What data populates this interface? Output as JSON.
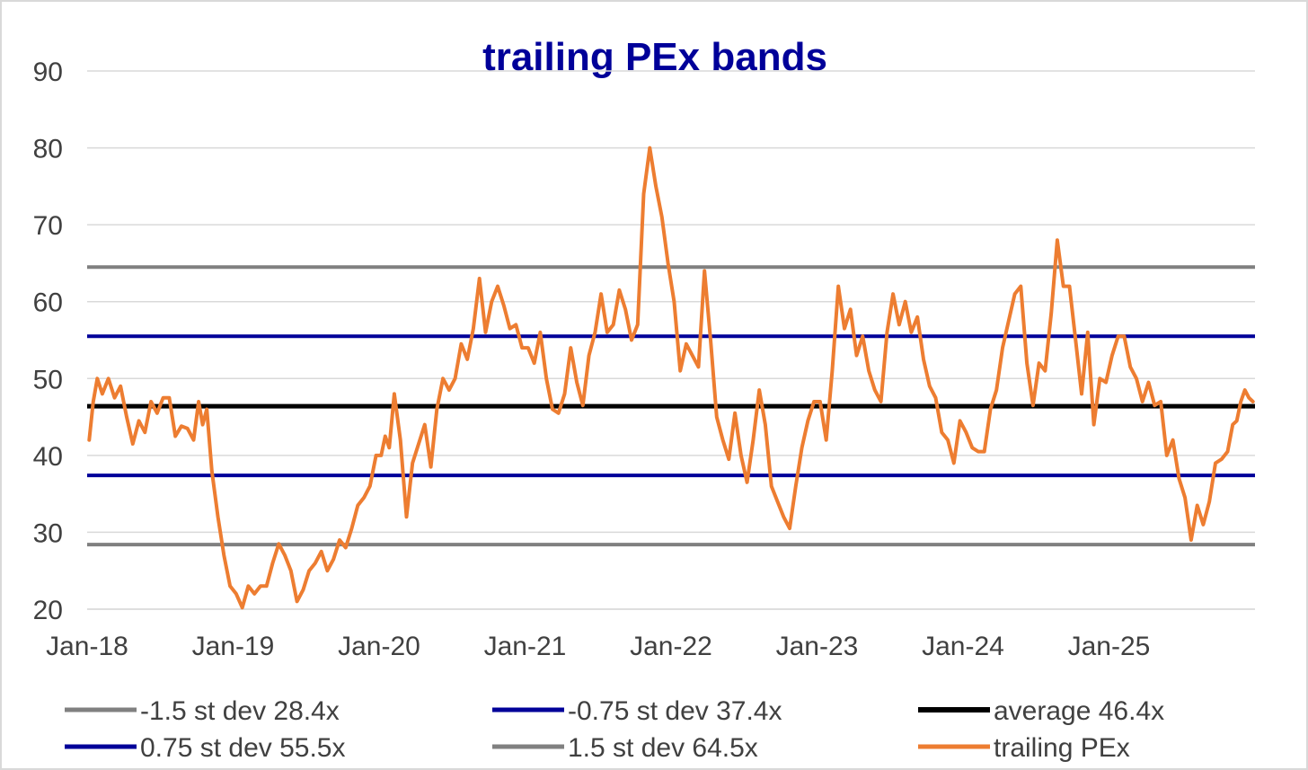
{
  "chart_data": {
    "type": "line",
    "title": "trailing PEx bands",
    "xlabel": "",
    "ylabel": "",
    "ylim": [
      20,
      90
    ],
    "yticks": [
      "20",
      "30",
      "40",
      "50",
      "60",
      "70",
      "80",
      "90"
    ],
    "xticks": [
      "Jan-18",
      "Jan-19",
      "Jan-20",
      "Jan-21",
      "Jan-22",
      "Jan-23",
      "Jan-24",
      "Jan-25"
    ],
    "x_start": "Jan-18",
    "x_end": "Dec-25",
    "grid": true,
    "legend_position": "bottom",
    "bands": [
      {
        "name": "-1.5 st dev 28.4x",
        "value": 28.4,
        "color": "#808080"
      },
      {
        "name": "-0.75 st dev 37.4x",
        "value": 37.4,
        "color": "#000099"
      },
      {
        "name": "average 46.4x",
        "value": 46.4,
        "color": "#000000"
      },
      {
        "name": "0.75 st dev 55.5x",
        "value": 55.5,
        "color": "#000099"
      },
      {
        "name": "1.5 st dev 64.5x",
        "value": 64.5,
        "color": "#808080"
      }
    ],
    "series": [
      {
        "name": "trailing PEx",
        "color": "#ED7D31",
        "points": [
          [
            "Jan-18",
            42
          ],
          [
            "Jan-18",
            47
          ],
          [
            "Jan-18",
            50
          ],
          [
            "Feb-18",
            48
          ],
          [
            "Feb-18",
            50
          ],
          [
            "Mar-18",
            47.5
          ],
          [
            "Mar-18",
            49
          ],
          [
            "Apr-18",
            45
          ],
          [
            "Apr-18",
            41.5
          ],
          [
            "May-18",
            44.5
          ],
          [
            "May-18",
            43
          ],
          [
            "Jun-18",
            47
          ],
          [
            "Jun-18",
            45.5
          ],
          [
            "Jul-18",
            47.5
          ],
          [
            "Jul-18",
            47.5
          ],
          [
            "Aug-18",
            42.5
          ],
          [
            "Aug-18",
            43.8
          ],
          [
            "Sep-18",
            43.5
          ],
          [
            "Sep-18",
            42
          ],
          [
            "Oct-18",
            47
          ],
          [
            "Oct-18",
            44
          ],
          [
            "Oct-18",
            46
          ],
          [
            "Nov-18",
            38
          ],
          [
            "Nov-18",
            32
          ],
          [
            "Dec-18",
            27
          ],
          [
            "Dec-18",
            23
          ],
          [
            "Jan-19",
            22
          ],
          [
            "Jan-19",
            20.2
          ],
          [
            "Feb-19",
            23
          ],
          [
            "Feb-19",
            22
          ],
          [
            "Mar-19",
            23
          ],
          [
            "Mar-19",
            23
          ],
          [
            "Apr-19",
            26
          ],
          [
            "Apr-19",
            28.5
          ],
          [
            "May-19",
            27
          ],
          [
            "May-19",
            25
          ],
          [
            "Jun-19",
            21
          ],
          [
            "Jun-19",
            22.5
          ],
          [
            "Jul-19",
            25
          ],
          [
            "Jul-19",
            26
          ],
          [
            "Aug-19",
            27.5
          ],
          [
            "Aug-19",
            25
          ],
          [
            "Sep-19",
            26.5
          ],
          [
            "Sep-19",
            29
          ],
          [
            "Oct-19",
            28
          ],
          [
            "Oct-19",
            30.5
          ],
          [
            "Nov-19",
            33.5
          ],
          [
            "Nov-19",
            34.5
          ],
          [
            "Dec-19",
            36
          ],
          [
            "Dec-19",
            40
          ],
          [
            "Jan-20",
            40
          ],
          [
            "Jan-20",
            42.5
          ],
          [
            "Jan-20",
            41
          ],
          [
            "Feb-20",
            48
          ],
          [
            "Feb-20",
            42
          ],
          [
            "Mar-20",
            32
          ],
          [
            "Mar-20",
            39
          ],
          [
            "Apr-20",
            41.5
          ],
          [
            "Apr-20",
            44
          ],
          [
            "May-20",
            38.5
          ],
          [
            "May-20",
            46
          ],
          [
            "Jun-20",
            50
          ],
          [
            "Jun-20",
            48.5
          ],
          [
            "Jul-20",
            50
          ],
          [
            "Jul-20",
            54.5
          ],
          [
            "Aug-20",
            52.5
          ],
          [
            "Aug-20",
            56.5
          ],
          [
            "Sep-20",
            63
          ],
          [
            "Sep-20",
            56
          ],
          [
            "Oct-20",
            60
          ],
          [
            "Oct-20",
            62
          ],
          [
            "Nov-20",
            59.5
          ],
          [
            "Nov-20",
            56.5
          ],
          [
            "Dec-20",
            57
          ],
          [
            "Dec-20",
            54
          ],
          [
            "Jan-21",
            54
          ],
          [
            "Jan-21",
            52
          ],
          [
            "Feb-21",
            56
          ],
          [
            "Feb-21",
            50
          ],
          [
            "Mar-21",
            46
          ],
          [
            "Mar-21",
            45.5
          ],
          [
            "Apr-21",
            48
          ],
          [
            "Apr-21",
            54
          ],
          [
            "May-21",
            49.5
          ],
          [
            "May-21",
            46.5
          ],
          [
            "Jun-21",
            53
          ],
          [
            "Jun-21",
            56
          ],
          [
            "Jul-21",
            61
          ],
          [
            "Jul-21",
            56
          ],
          [
            "Aug-21",
            57
          ],
          [
            "Aug-21",
            61.5
          ],
          [
            "Sep-21",
            59
          ],
          [
            "Sep-21",
            55
          ],
          [
            "Oct-21",
            57
          ],
          [
            "Oct-21",
            74
          ],
          [
            "Nov-21",
            80
          ],
          [
            "Nov-21",
            75
          ],
          [
            "Dec-21",
            71
          ],
          [
            "Dec-21",
            65
          ],
          [
            "Jan-22",
            60
          ],
          [
            "Jan-22",
            51
          ],
          [
            "Feb-22",
            54.5
          ],
          [
            "Feb-22",
            53
          ],
          [
            "Mar-22",
            51.5
          ],
          [
            "Mar-22",
            64
          ],
          [
            "Apr-22",
            55
          ],
          [
            "Apr-22",
            45
          ],
          [
            "May-22",
            42
          ],
          [
            "May-22",
            39.5
          ],
          [
            "Jun-22",
            45.5
          ],
          [
            "Jun-22",
            40
          ],
          [
            "Jul-22",
            36.5
          ],
          [
            "Jul-22",
            42
          ],
          [
            "Aug-22",
            48.5
          ],
          [
            "Aug-22",
            44
          ],
          [
            "Sep-22",
            36
          ],
          [
            "Sep-22",
            34
          ],
          [
            "Oct-22",
            32
          ],
          [
            "Oct-22",
            30.5
          ],
          [
            "Nov-22",
            36
          ],
          [
            "Nov-22",
            41
          ],
          [
            "Dec-22",
            44.5
          ],
          [
            "Dec-22",
            47
          ],
          [
            "Jan-23",
            47
          ],
          [
            "Jan-23",
            42
          ],
          [
            "Feb-23",
            51
          ],
          [
            "Feb-23",
            62
          ],
          [
            "Mar-23",
            56.5
          ],
          [
            "Mar-23",
            59
          ],
          [
            "Apr-23",
            53
          ],
          [
            "Apr-23",
            55.5
          ],
          [
            "May-23",
            51
          ],
          [
            "May-23",
            48.5
          ],
          [
            "Jun-23",
            47
          ],
          [
            "Jun-23",
            56
          ],
          [
            "Jul-23",
            61
          ],
          [
            "Jul-23",
            57
          ],
          [
            "Aug-23",
            60
          ],
          [
            "Aug-23",
            56
          ],
          [
            "Sep-23",
            58
          ],
          [
            "Sep-23",
            52.5
          ],
          [
            "Oct-23",
            49
          ],
          [
            "Oct-23",
            47.5
          ],
          [
            "Nov-23",
            43
          ],
          [
            "Nov-23",
            42
          ],
          [
            "Dec-23",
            39
          ],
          [
            "Dec-23",
            44.5
          ],
          [
            "Jan-24",
            43
          ],
          [
            "Jan-24",
            41
          ],
          [
            "Feb-24",
            40.5
          ],
          [
            "Feb-24",
            40.5
          ],
          [
            "Mar-24",
            46
          ],
          [
            "Mar-24",
            48.5
          ],
          [
            "Apr-24",
            54
          ],
          [
            "Apr-24",
            57.5
          ],
          [
            "May-24",
            61
          ],
          [
            "May-24",
            62
          ],
          [
            "Jun-24",
            52
          ],
          [
            "Jun-24",
            46.5
          ],
          [
            "Jul-24",
            52
          ],
          [
            "Jul-24",
            51
          ],
          [
            "Aug-24",
            58.5
          ],
          [
            "Aug-24",
            68
          ],
          [
            "Sep-24",
            62
          ],
          [
            "Sep-24",
            62
          ],
          [
            "Oct-24",
            55
          ],
          [
            "Oct-24",
            48
          ],
          [
            "Nov-24",
            56
          ],
          [
            "Nov-24",
            44
          ],
          [
            "Dec-24",
            50
          ],
          [
            "Dec-24",
            49.5
          ],
          [
            "Jan-25",
            53
          ],
          [
            "Jan-25",
            55.5
          ],
          [
            "Feb-25",
            55.5
          ],
          [
            "Feb-25",
            51.5
          ],
          [
            "Mar-25",
            50
          ],
          [
            "Mar-25",
            47
          ],
          [
            "Apr-25",
            49.5
          ],
          [
            "Apr-25",
            46.5
          ],
          [
            "May-25",
            47
          ],
          [
            "May-25",
            40
          ],
          [
            "Jun-25",
            42
          ],
          [
            "Jun-25",
            37
          ],
          [
            "Jul-25",
            34.5
          ],
          [
            "Jul-25",
            29
          ],
          [
            "Aug-25",
            33.5
          ],
          [
            "Aug-25",
            31
          ],
          [
            "Sep-25",
            34
          ],
          [
            "Sep-25",
            39
          ],
          [
            "Oct-25",
            39.5
          ],
          [
            "Oct-25",
            40.5
          ],
          [
            "Nov-25",
            44
          ],
          [
            "Nov-25",
            44.5
          ],
          [
            "Nov-25",
            47
          ],
          [
            "Dec-25",
            48.5
          ],
          [
            "Dec-25",
            47.5
          ],
          [
            "Dec-25",
            47
          ]
        ]
      }
    ],
    "legend": [
      {
        "label": "-1.5 st dev 28.4x",
        "color": "#808080"
      },
      {
        "label": "-0.75 st dev 37.4x",
        "color": "#000099"
      },
      {
        "label": "average 46.4x",
        "color": "#000000"
      },
      {
        "label": "0.75 st dev 55.5x",
        "color": "#000099"
      },
      {
        "label": "1.5 st dev 64.5x",
        "color": "#808080"
      },
      {
        "label": "trailing PEx",
        "color": "#ED7D31"
      }
    ]
  }
}
